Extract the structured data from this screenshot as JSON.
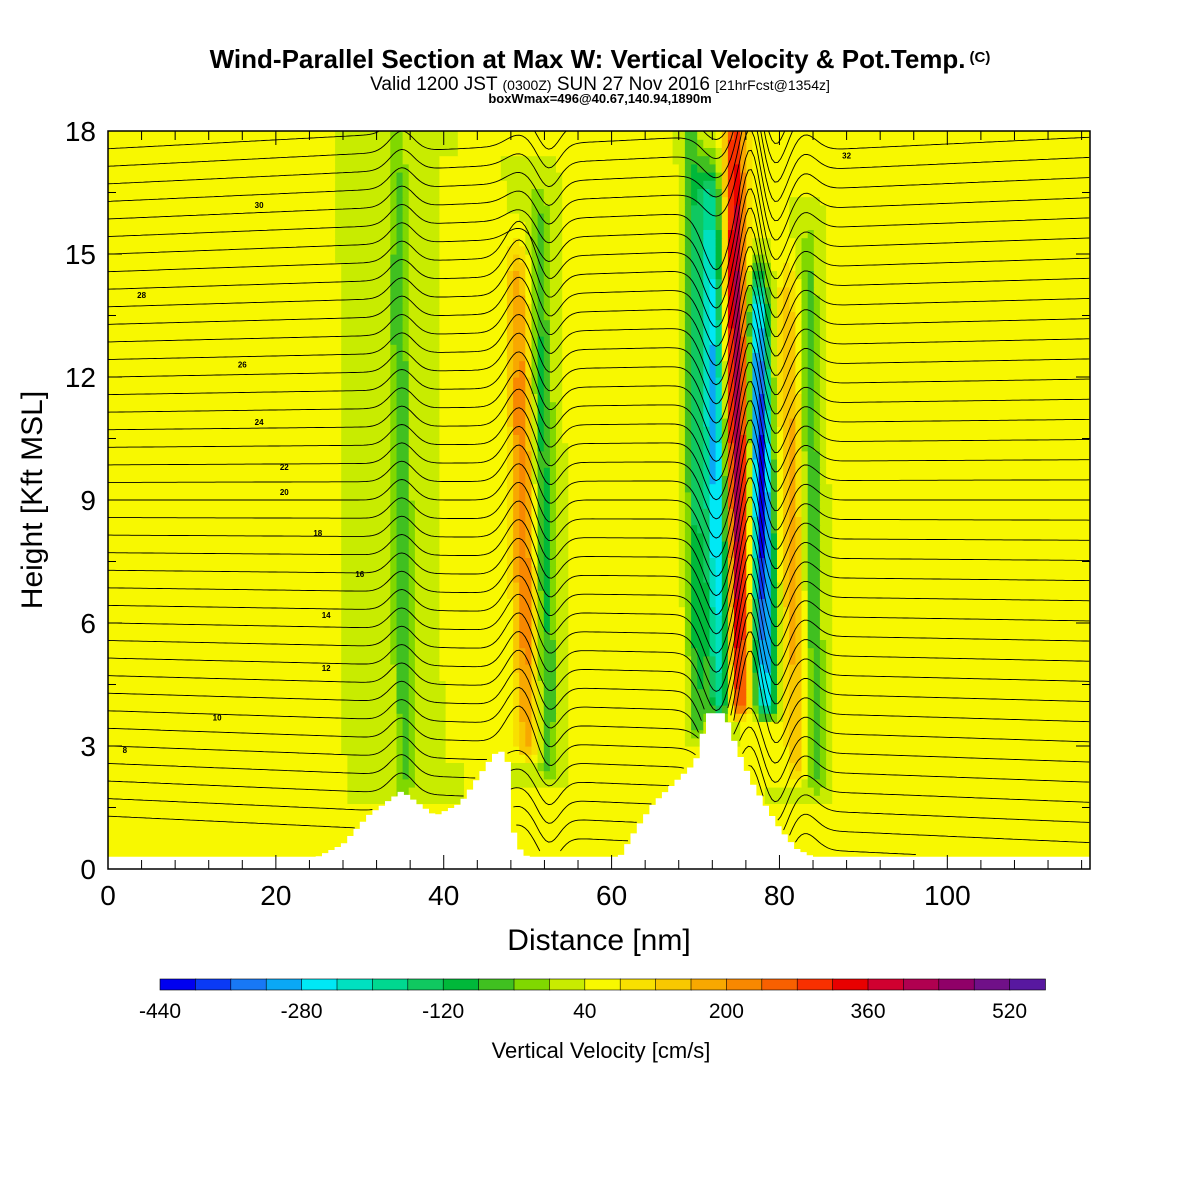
{
  "title": {
    "main": "Wind-Parallel Section at Max W: Vertical Velocity & Pot.Temp.",
    "copyright_mark": "(C)",
    "valid_prefix": "Valid 1200 JST",
    "valid_utc": "(0300Z)",
    "valid_date": "SUN 27 Nov 2016",
    "forecast_note": "[21hrFcst@1354z]",
    "box_info": "boxWmax=496@40.67,140.94,1890m"
  },
  "chart_data": {
    "type": "heatmap",
    "xlabel": "Distance [nm]",
    "ylabel": "Height [Kft MSL]",
    "xlim": [
      0,
      117
    ],
    "ylim": [
      0,
      18
    ],
    "x_ticks": [
      0,
      20,
      40,
      60,
      80,
      100
    ],
    "y_ticks": [
      0,
      3,
      6,
      9,
      12,
      15,
      18
    ],
    "colorbar": {
      "label": "Vertical Velocity [cm/s]",
      "min": -440,
      "max": 560,
      "step": 40,
      "tick_labels": [
        -440,
        -280,
        -120,
        40,
        200,
        360,
        520
      ],
      "colors": [
        "#0000f0",
        "#0a3af5",
        "#1878f5",
        "#0aa8f5",
        "#00e8f5",
        "#00e0c0",
        "#00d890",
        "#10c860",
        "#00b83a",
        "#40c020",
        "#80d800",
        "#c8ec00",
        "#f8f800",
        "#f8e000",
        "#f8c800",
        "#f8a800",
        "#f88800",
        "#f86000",
        "#f83000",
        "#e80000",
        "#d00030",
        "#b00050",
        "#900068",
        "#701088",
        "#5818a0"
      ]
    },
    "terrain_profile_kft": [
      [
        0,
        0.3
      ],
      [
        25,
        0.3
      ],
      [
        28,
        0.6
      ],
      [
        31,
        1.3
      ],
      [
        33,
        1.6
      ],
      [
        35,
        1.9
      ],
      [
        37,
        1.6
      ],
      [
        39,
        1.3
      ],
      [
        42,
        1.6
      ],
      [
        44,
        2.2
      ],
      [
        46,
        2.8
      ],
      [
        47.5,
        2.9
      ],
      [
        48.5,
        0.6
      ],
      [
        50,
        0.3
      ],
      [
        61,
        0.3
      ],
      [
        63,
        1.0
      ],
      [
        65,
        1.6
      ],
      [
        67,
        2.0
      ],
      [
        70,
        2.6
      ],
      [
        71.5,
        3.8
      ],
      [
        73.5,
        3.8
      ],
      [
        75,
        2.9
      ],
      [
        77,
        2.0
      ],
      [
        80,
        1.0
      ],
      [
        82,
        0.5
      ],
      [
        84,
        0.3
      ],
      [
        117,
        0.3
      ]
    ],
    "vertical_velocity_features": [
      {
        "x": 49.5,
        "z_bottom": 3.0,
        "z_top": 14.5,
        "tilt_nm_per_kft": 0.35,
        "w_cm_s": 240,
        "half_width_nm": 1.4
      },
      {
        "x": 52.0,
        "z_bottom": 2.5,
        "z_top": 16.0,
        "tilt_nm_per_kft": 0.3,
        "w_cm_s": -100,
        "half_width_nm": 1.2
      },
      {
        "x": 57.0,
        "z_bottom": 1.0,
        "z_top": 17.0,
        "tilt_nm_per_kft": 0.25,
        "w_cm_s": 80,
        "half_width_nm": 1.2
      },
      {
        "x": 35.0,
        "z_bottom": 2.0,
        "z_top": 17.5,
        "tilt_nm_per_kft": 0.2,
        "w_cm_s": -80,
        "half_width_nm": 1.2
      },
      {
        "x": 44.0,
        "z_bottom": 3.0,
        "z_top": 16.0,
        "tilt_nm_per_kft": 0.2,
        "w_cm_s": 60,
        "half_width_nm": 1.2
      },
      {
        "x": 72.5,
        "z_bottom": 4.0,
        "z_top": 16.5,
        "tilt_nm_per_kft": 0.35,
        "w_cm_s": -300,
        "half_width_nm": 1.4
      },
      {
        "x": 75.0,
        "z_bottom": 4.0,
        "z_top": 18.0,
        "tilt_nm_per_kft": 0.12,
        "w_cm_s": 440,
        "half_width_nm": 1.2
      },
      {
        "x": 78.0,
        "z_bottom": 4.0,
        "z_top": 14.0,
        "tilt_nm_per_kft": 0.3,
        "w_cm_s": -420,
        "half_width_nm": 1.2
      },
      {
        "x": 81.5,
        "z_bottom": 2.5,
        "z_top": 14.0,
        "tilt_nm_per_kft": 0.3,
        "w_cm_s": 180,
        "half_width_nm": 1.2
      },
      {
        "x": 84.0,
        "z_bottom": 2.0,
        "z_top": 15.0,
        "tilt_nm_per_kft": 0.25,
        "w_cm_s": -80,
        "half_width_nm": 1.0
      },
      {
        "x": 88.5,
        "z_bottom": 1.5,
        "z_top": 16.0,
        "tilt_nm_per_kft": 0.2,
        "w_cm_s": 70,
        "half_width_nm": 1.5
      },
      {
        "x": 67.0,
        "z_bottom": 2.5,
        "z_top": 17.0,
        "tilt_nm_per_kft": 0.2,
        "w_cm_s": 60,
        "half_width_nm": 1.3
      },
      {
        "x": 70.0,
        "z_bottom": 3.5,
        "z_top": 18.0,
        "tilt_nm_per_kft": 0.2,
        "w_cm_s": -120,
        "half_width_nm": 1.0
      },
      {
        "x": 96.0,
        "z_bottom": 1.0,
        "z_top": 18.0,
        "tilt_nm_per_kft": 0.1,
        "w_cm_s": 40,
        "half_width_nm": 2.0
      },
      {
        "x": 105.0,
        "z_bottom": 1.0,
        "z_top": 18.0,
        "tilt_nm_per_kft": 0.05,
        "w_cm_s": 40,
        "half_width_nm": 2.5
      },
      {
        "x": 76.5,
        "z_bottom": 14.0,
        "z_top": 18.0,
        "tilt_nm_per_kft": 0.0,
        "w_cm_s": 60,
        "half_width_nm": 2.0
      }
    ],
    "theta_contours": [
      {
        "label": "8",
        "z": 2.9,
        "label_x": 2
      },
      {
        "label": "10",
        "z": 3.7,
        "label_x": 13
      },
      {
        "label": "12",
        "z": 4.9,
        "label_x": 26
      },
      {
        "label": "14",
        "z": 6.2,
        "label_x": 26
      },
      {
        "label": "16",
        "z": 7.2,
        "label_x": 30
      },
      {
        "label": "18",
        "z": 8.2,
        "label_x": 25
      },
      {
        "label": "20",
        "z": 9.2,
        "label_x": 21
      },
      {
        "label": "22",
        "z": 9.8,
        "label_x": 21
      },
      {
        "label": "24",
        "z": 10.9,
        "label_x": 18
      },
      {
        "label": "26",
        "z": 12.3,
        "label_x": 16
      },
      {
        "label": "28",
        "z": 14.0,
        "label_x": 4
      },
      {
        "label": "30",
        "z": 16.2,
        "label_x": 18
      },
      {
        "label": "32",
        "z": 17.4,
        "label_x": 88
      }
    ]
  }
}
